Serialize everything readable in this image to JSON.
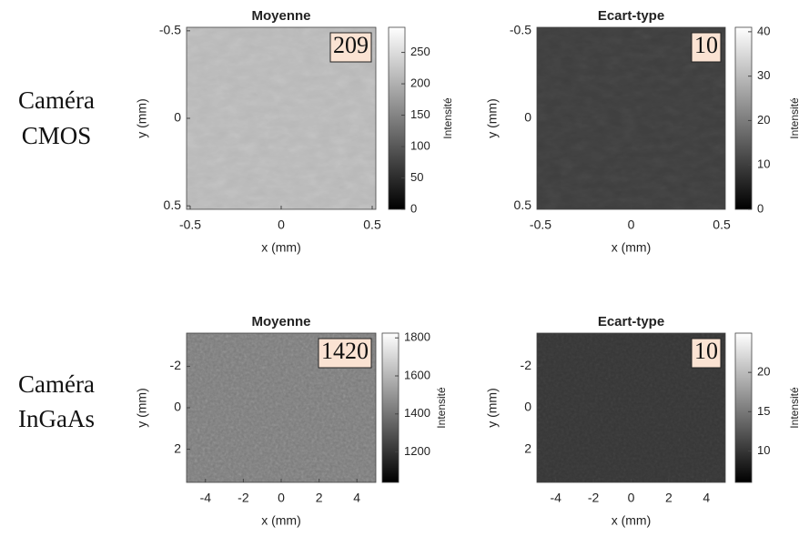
{
  "row_labels": [
    [
      "Caméra",
      "CMOS"
    ],
    [
      "Caméra",
      "InGaAs"
    ]
  ],
  "chart_data": [
    {
      "type": "heatmap",
      "title": "Moyenne",
      "xlabel": "x (mm)",
      "ylabel": "y (mm)",
      "colormap": "gray",
      "xlim": [
        -0.52,
        0.52
      ],
      "xticks": [
        -0.5,
        0,
        0.5
      ],
      "ylim": [
        0.52,
        -0.52
      ],
      "yticks": [
        -0.5,
        0,
        0.5
      ],
      "annotation": 209,
      "colorbar": {
        "label": "Intensité",
        "lim": [
          0,
          290
        ],
        "ticks": [
          0,
          50,
          100,
          150,
          200,
          250
        ]
      }
    },
    {
      "type": "heatmap",
      "title": "Ecart-type",
      "xlabel": "x (mm)",
      "ylabel": "y (mm)",
      "colormap": "gray",
      "xlim": [
        -0.52,
        0.52
      ],
      "xticks": [
        -0.5,
        0,
        0.5
      ],
      "ylim": [
        0.52,
        -0.52
      ],
      "yticks": [
        -0.5,
        0,
        0.5
      ],
      "annotation": 10,
      "colorbar": {
        "label": "Intensité",
        "lim": [
          0,
          41
        ],
        "ticks": [
          0,
          10,
          20,
          30,
          40
        ]
      }
    },
    {
      "type": "heatmap",
      "title": "Moyenne",
      "xlabel": "x (mm)",
      "ylabel": "y (mm)",
      "colormap": "gray",
      "xlim": [
        -5,
        5
      ],
      "xticks": [
        -4,
        -2,
        0,
        2,
        4
      ],
      "ylim": [
        3.6,
        -3.6
      ],
      "yticks": [
        -2,
        0,
        2
      ],
      "annotation": 1420,
      "colorbar": {
        "label": "Intensité",
        "lim": [
          1040,
          1825
        ],
        "ticks": [
          1200,
          1400,
          1600,
          1800
        ]
      }
    },
    {
      "type": "heatmap",
      "title": "Ecart-type",
      "xlabel": "x (mm)",
      "ylabel": "y (mm)",
      "colormap": "gray",
      "xlim": [
        -5,
        5
      ],
      "xticks": [
        -4,
        -2,
        0,
        2,
        4
      ],
      "ylim": [
        3.6,
        -3.6
      ],
      "yticks": [
        -2,
        0,
        2
      ],
      "annotation": 10,
      "colorbar": {
        "label": "Intensité",
        "lim": [
          6,
          25
        ],
        "ticks": [
          10,
          15,
          20
        ]
      }
    }
  ]
}
